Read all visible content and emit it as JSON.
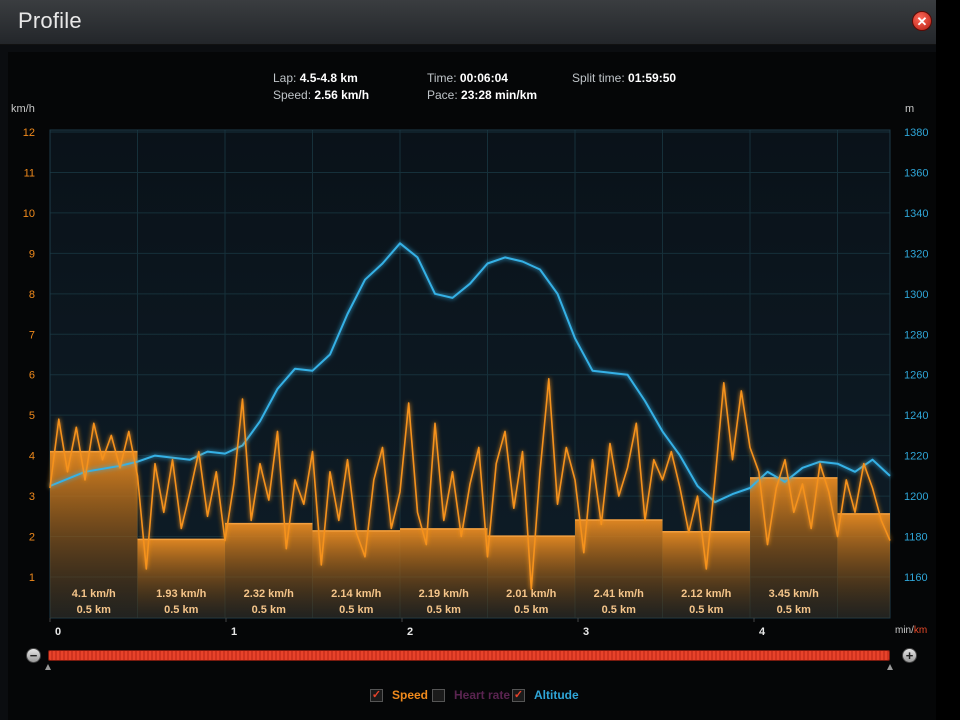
{
  "window": {
    "title": "Profile"
  },
  "header": {
    "lap_label": "Lap:",
    "lap_value": "4.5-4.8 km",
    "speed_label": "Speed:",
    "speed_value": "2.56 km/h",
    "time_label": "Time:",
    "time_value": "00:06:04",
    "pace_label": "Pace:",
    "pace_value": "23:28 min/km",
    "split_label": "Split time:",
    "split_value": "01:59:50"
  },
  "axes": {
    "left_unit": "km/h",
    "right_unit": "m",
    "x_unit_min": "min/",
    "x_unit_km": "km"
  },
  "legend": {
    "speed": {
      "label": "Speed",
      "checked": true,
      "check": "✓",
      "color": "#f08a1c"
    },
    "heart_rate": {
      "label": "Heart rate",
      "checked": false,
      "check": "",
      "color": "#5a2450"
    },
    "altitude": {
      "label": "Altitude",
      "checked": true,
      "check": "✓",
      "color": "#2fa6d8"
    }
  },
  "colors": {
    "speed": "#f5921e",
    "altitude": "#35b1e6",
    "grid": "#16303a",
    "plot_bg": "#0b1620",
    "left_ticks": "#f08a1c",
    "right_ticks": "#2fa6d8",
    "range_bar": "#e8432a"
  },
  "chart_data": {
    "type": "line",
    "x_ticks": [
      "0",
      "1",
      "2",
      "3",
      "4"
    ],
    "xlim_km": [
      0,
      4.8
    ],
    "left_axis": {
      "label": "km/h",
      "ylim": [
        0,
        12
      ],
      "ticks": [
        "1",
        "2",
        "3",
        "4",
        "5",
        "6",
        "7",
        "8",
        "9",
        "10",
        "11",
        "12"
      ]
    },
    "right_axis": {
      "label": "m",
      "ylim": [
        1150,
        1380
      ],
      "ticks": [
        "1160",
        "1180",
        "1200",
        "1220",
        "1240",
        "1260",
        "1280",
        "1300",
        "1320",
        "1340",
        "1360",
        "1380"
      ]
    },
    "laps": [
      {
        "speed": 4.1,
        "speed_label": "4.1 km/h",
        "dist_label": "0.5 km"
      },
      {
        "speed": 1.93,
        "speed_label": "1.93 km/h",
        "dist_label": "0.5 km"
      },
      {
        "speed": 2.32,
        "speed_label": "2.32 km/h",
        "dist_label": "0.5 km"
      },
      {
        "speed": 2.14,
        "speed_label": "2.14 km/h",
        "dist_label": "0.5 km"
      },
      {
        "speed": 2.19,
        "speed_label": "2.19 km/h",
        "dist_label": "0.5 km"
      },
      {
        "speed": 2.01,
        "speed_label": "2.01 km/h",
        "dist_label": "0.5 km"
      },
      {
        "speed": 2.41,
        "speed_label": "2.41 km/h",
        "dist_label": "0.5 km"
      },
      {
        "speed": 2.12,
        "speed_label": "2.12 km/h",
        "dist_label": "0.5 km"
      },
      {
        "speed": 3.45,
        "speed_label": "3.45 km/h",
        "dist_label": "0.5 km"
      },
      {
        "speed": 2.56,
        "speed_label": "",
        "dist_label": ""
      }
    ],
    "series": [
      {
        "name": "Altitude",
        "axis": "right",
        "x": [
          0,
          0.2,
          0.4,
          0.5,
          0.6,
          0.8,
          0.9,
          1.0,
          1.1,
          1.2,
          1.3,
          1.4,
          1.5,
          1.6,
          1.7,
          1.8,
          1.9,
          2.0,
          2.1,
          2.2,
          2.3,
          2.4,
          2.5,
          2.6,
          2.7,
          2.8,
          2.9,
          3.0,
          3.1,
          3.2,
          3.3,
          3.4,
          3.5,
          3.6,
          3.7,
          3.8,
          3.9,
          4.0,
          4.1,
          4.2,
          4.3,
          4.4,
          4.5,
          4.6,
          4.7,
          4.8
        ],
        "values": [
          1205,
          1212,
          1215,
          1217,
          1220,
          1218,
          1222,
          1221,
          1225,
          1237,
          1253,
          1263,
          1262,
          1270,
          1290,
          1307,
          1315,
          1325,
          1318,
          1300,
          1298,
          1305,
          1315,
          1318,
          1316,
          1312,
          1300,
          1278,
          1262,
          1261,
          1260,
          1247,
          1232,
          1220,
          1205,
          1197,
          1201,
          1204,
          1212,
          1207,
          1214,
          1217,
          1216,
          1212,
          1218,
          1210
        ]
      },
      {
        "name": "Speed",
        "axis": "left",
        "x": [
          0,
          0.05,
          0.1,
          0.15,
          0.2,
          0.25,
          0.3,
          0.35,
          0.4,
          0.45,
          0.5,
          0.55,
          0.6,
          0.65,
          0.7,
          0.75,
          0.8,
          0.85,
          0.9,
          0.95,
          1.0,
          1.05,
          1.1,
          1.15,
          1.2,
          1.25,
          1.3,
          1.35,
          1.4,
          1.45,
          1.5,
          1.55,
          1.6,
          1.65,
          1.7,
          1.75,
          1.8,
          1.85,
          1.9,
          1.95,
          2.0,
          2.05,
          2.1,
          2.15,
          2.2,
          2.25,
          2.3,
          2.35,
          2.4,
          2.45,
          2.5,
          2.55,
          2.6,
          2.65,
          2.7,
          2.75,
          2.8,
          2.85,
          2.9,
          2.95,
          3.0,
          3.05,
          3.1,
          3.15,
          3.2,
          3.25,
          3.3,
          3.35,
          3.4,
          3.45,
          3.5,
          3.55,
          3.6,
          3.65,
          3.7,
          3.75,
          3.8,
          3.85,
          3.9,
          3.95,
          4.0,
          4.05,
          4.1,
          4.15,
          4.2,
          4.25,
          4.3,
          4.35,
          4.4,
          4.45,
          4.5,
          4.55,
          4.6,
          4.65,
          4.7,
          4.75,
          4.8
        ],
        "values": [
          3.2,
          4.9,
          3.6,
          4.7,
          3.4,
          4.8,
          3.9,
          4.5,
          3.7,
          4.6,
          3.5,
          1.2,
          3.8,
          2.6,
          3.9,
          2.2,
          3.1,
          4.1,
          2.5,
          3.6,
          1.9,
          3.3,
          5.4,
          2.4,
          3.8,
          2.9,
          4.6,
          1.7,
          3.4,
          2.8,
          4.1,
          1.3,
          3.6,
          2.4,
          3.9,
          2.1,
          1.5,
          3.4,
          4.2,
          2.2,
          3.1,
          5.3,
          2.6,
          1.8,
          4.8,
          2.4,
          3.6,
          2.0,
          3.3,
          4.2,
          1.5,
          3.8,
          4.6,
          2.7,
          4.1,
          0.7,
          3.6,
          5.9,
          2.8,
          4.2,
          3.4,
          1.6,
          3.9,
          2.3,
          4.3,
          3.0,
          3.7,
          4.8,
          2.4,
          3.9,
          3.4,
          4.1,
          3.2,
          2.1,
          3.0,
          1.2,
          3.4,
          5.8,
          3.9,
          5.6,
          4.2,
          3.6,
          1.8,
          3.2,
          3.9,
          2.6,
          3.3,
          2.2,
          3.8,
          3.1,
          2.0,
          3.4,
          2.6,
          3.8,
          3.2,
          2.4,
          1.9
        ]
      }
    ]
  }
}
